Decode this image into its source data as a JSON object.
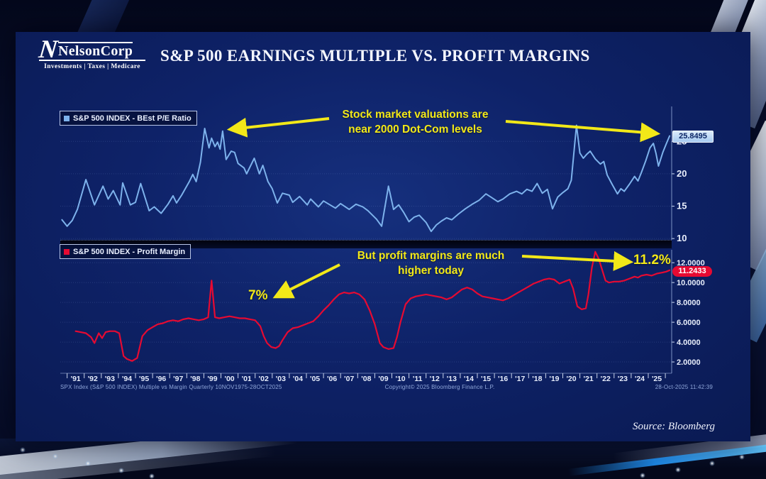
{
  "page": {
    "title": "S&P 500 EARNINGS MULTIPLE VS. PROFIT MARGINS"
  },
  "logo": {
    "name": "NelsonCorp",
    "n_mark": "N",
    "tagline": "Investments | Taxes | Medicare"
  },
  "annotations": {
    "top": {
      "line1": "Stock market valuations are",
      "line2": "near 2000 Dot-Com levels"
    },
    "bottom": {
      "line1": "But profit margins are much",
      "line2": "higher today"
    },
    "label_7pct": "7%",
    "label_11pct": "11.2%"
  },
  "footer": {
    "left": "SPX Index (S&P 500 INDEX) Multiple vs Margin Quarterly 10NOV1975-28OCT2025",
    "center": "Copyright© 2025 Bloomberg Finance L.P.",
    "right": "28-Oct-2025 11:42:39"
  },
  "source": "Source: Bloomberg",
  "colors": {
    "panel": "#0e2268",
    "pe_line": "#7db2ec",
    "margin_line": "#e60a32",
    "annotation_yellow": "#f2e818",
    "axis": "#8fa6d4",
    "grid": "rgba(130,160,220,0.22)",
    "tag_top_bg": "#a5c9f0",
    "tag_bot_bg": "#e60a32"
  },
  "xaxis": {
    "labels": [
      "'91",
      "'92",
      "'93",
      "'94",
      "'95",
      "'96",
      "'97",
      "'98",
      "'99",
      "'00",
      "'01",
      "'02",
      "'03",
      "'04",
      "'05",
      "'06",
      "'07",
      "'08",
      "'09",
      "'10",
      "'11",
      "'12",
      "'13",
      "'14",
      "'15",
      "'16",
      "'17",
      "'18",
      "'19",
      "'20",
      "'21",
      "'22",
      "'23",
      "'24",
      "'25"
    ],
    "start_year": 1991
  },
  "chart_data": [
    {
      "type": "line",
      "title": "S&P 500 INDEX - BEst P/E Ratio",
      "legend": "S&P 500 INDEX - BEst P/E Ratio",
      "color": "#7db2ec",
      "last_value": "25.8495",
      "ylim": [
        9.8,
        30.4
      ],
      "yticks": [
        10,
        15,
        20,
        25
      ],
      "ytick_labels": [
        "10",
        "15",
        "20",
        "25"
      ],
      "xlim": [
        1990.1,
        2025.87
      ],
      "grid": true,
      "legend_position": "top-left",
      "points": [
        [
          1990.2,
          12.9
        ],
        [
          1990.5,
          11.9
        ],
        [
          1990.8,
          12.8
        ],
        [
          1991.1,
          14.5
        ],
        [
          1991.6,
          19.1
        ],
        [
          1992.1,
          15.2
        ],
        [
          1992.6,
          18.1
        ],
        [
          1992.9,
          16.1
        ],
        [
          1993.2,
          17.4
        ],
        [
          1993.6,
          15.2
        ],
        [
          1993.75,
          18.6
        ],
        [
          1994.2,
          15.2
        ],
        [
          1994.5,
          15.6
        ],
        [
          1994.8,
          18.5
        ],
        [
          1995.3,
          14.3
        ],
        [
          1995.6,
          14.9
        ],
        [
          1996.0,
          13.9
        ],
        [
          1996.4,
          15.3
        ],
        [
          1996.7,
          16.6
        ],
        [
          1996.9,
          15.5
        ],
        [
          1997.2,
          16.7
        ],
        [
          1997.65,
          18.8
        ],
        [
          1997.85,
          19.9
        ],
        [
          1998.05,
          18.8
        ],
        [
          1998.3,
          21.8
        ],
        [
          1998.55,
          27.0
        ],
        [
          1998.8,
          24.0
        ],
        [
          1998.95,
          25.5
        ],
        [
          1999.15,
          24.2
        ],
        [
          1999.3,
          24.9
        ],
        [
          1999.45,
          23.8
        ],
        [
          1999.6,
          26.6
        ],
        [
          1999.8,
          22.2
        ],
        [
          2000.1,
          23.5
        ],
        [
          2000.3,
          23.3
        ],
        [
          2000.5,
          21.6
        ],
        [
          2000.85,
          20.9
        ],
        [
          2001.0,
          20.0
        ],
        [
          2001.45,
          22.4
        ],
        [
          2001.75,
          20.0
        ],
        [
          2001.95,
          21.3
        ],
        [
          2002.25,
          18.8
        ],
        [
          2002.5,
          17.7
        ],
        [
          2002.8,
          15.5
        ],
        [
          2003.1,
          17.0
        ],
        [
          2003.5,
          16.7
        ],
        [
          2003.7,
          15.6
        ],
        [
          2004.1,
          16.5
        ],
        [
          2004.55,
          15.2
        ],
        [
          2004.75,
          16.1
        ],
        [
          2005.2,
          14.9
        ],
        [
          2005.5,
          15.8
        ],
        [
          2006.2,
          14.7
        ],
        [
          2006.5,
          15.4
        ],
        [
          2007.0,
          14.5
        ],
        [
          2007.4,
          15.3
        ],
        [
          2007.8,
          14.9
        ],
        [
          2008.1,
          14.3
        ],
        [
          2008.6,
          13.0
        ],
        [
          2008.9,
          11.9
        ],
        [
          2009.3,
          18.1
        ],
        [
          2009.6,
          14.5
        ],
        [
          2009.9,
          15.2
        ],
        [
          2010.2,
          14.0
        ],
        [
          2010.5,
          12.6
        ],
        [
          2010.8,
          13.3
        ],
        [
          2011.1,
          13.6
        ],
        [
          2011.5,
          12.5
        ],
        [
          2011.8,
          11.1
        ],
        [
          2012.1,
          12.1
        ],
        [
          2012.4,
          12.7
        ],
        [
          2012.7,
          13.2
        ],
        [
          2013.0,
          12.9
        ],
        [
          2013.4,
          13.8
        ],
        [
          2013.8,
          14.6
        ],
        [
          2014.2,
          15.3
        ],
        [
          2014.6,
          15.9
        ],
        [
          2015.0,
          16.9
        ],
        [
          2015.3,
          16.4
        ],
        [
          2015.7,
          15.7
        ],
        [
          2016.0,
          16.1
        ],
        [
          2016.4,
          16.9
        ],
        [
          2016.8,
          17.3
        ],
        [
          2017.1,
          16.9
        ],
        [
          2017.4,
          17.6
        ],
        [
          2017.7,
          17.3
        ],
        [
          2018.0,
          18.5
        ],
        [
          2018.3,
          17.0
        ],
        [
          2018.6,
          17.6
        ],
        [
          2018.9,
          14.6
        ],
        [
          2019.2,
          16.4
        ],
        [
          2019.5,
          17.1
        ],
        [
          2019.8,
          17.7
        ],
        [
          2020.0,
          19.0
        ],
        [
          2020.3,
          27.5
        ],
        [
          2020.5,
          23.2
        ],
        [
          2020.7,
          22.4
        ],
        [
          2020.9,
          23.0
        ],
        [
          2021.1,
          23.5
        ],
        [
          2021.4,
          22.3
        ],
        [
          2021.7,
          21.5
        ],
        [
          2021.9,
          21.9
        ],
        [
          2022.1,
          19.8
        ],
        [
          2022.4,
          18.3
        ],
        [
          2022.7,
          16.9
        ],
        [
          2022.9,
          17.7
        ],
        [
          2023.1,
          17.3
        ],
        [
          2023.4,
          18.4
        ],
        [
          2023.7,
          19.6
        ],
        [
          2023.9,
          18.9
        ],
        [
          2024.1,
          20.2
        ],
        [
          2024.35,
          22.0
        ],
        [
          2024.6,
          24.0
        ],
        [
          2024.8,
          24.7
        ],
        [
          2024.95,
          23.2
        ],
        [
          2025.1,
          21.2
        ],
        [
          2025.35,
          23.3
        ],
        [
          2025.55,
          24.6
        ],
        [
          2025.75,
          25.8495
        ]
      ]
    },
    {
      "type": "line",
      "title": "S&P 500 INDEX - Profit Margin",
      "legend": "S&P 500 INDEX - Profit Margin",
      "color": "#e60a32",
      "last_value": "11.2433",
      "ylim": [
        0.86,
        13.3
      ],
      "yticks": [
        2,
        4,
        6,
        8,
        10,
        12
      ],
      "ytick_labels": [
        "2.0000",
        "4.0000",
        "6.0000",
        "8.0000",
        "10.0000",
        "12.0000"
      ],
      "xlim": [
        1990.1,
        2025.87
      ],
      "grid": true,
      "legend_position": "top-left",
      "points": [
        [
          1991.0,
          5.1
        ],
        [
          1991.3,
          5.0
        ],
        [
          1991.6,
          4.9
        ],
        [
          1991.9,
          4.5
        ],
        [
          1992.1,
          3.9
        ],
        [
          1992.35,
          4.9
        ],
        [
          1992.55,
          4.4
        ],
        [
          1992.75,
          5.0
        ],
        [
          1993.0,
          5.1
        ],
        [
          1993.3,
          5.1
        ],
        [
          1993.55,
          4.9
        ],
        [
          1993.8,
          2.6
        ],
        [
          1994.0,
          2.3
        ],
        [
          1994.3,
          2.1
        ],
        [
          1994.6,
          2.4
        ],
        [
          1994.9,
          4.6
        ],
        [
          1995.2,
          5.2
        ],
        [
          1995.5,
          5.5
        ],
        [
          1995.8,
          5.8
        ],
        [
          1996.1,
          5.9
        ],
        [
          1996.4,
          6.1
        ],
        [
          1996.7,
          6.2
        ],
        [
          1997.0,
          6.1
        ],
        [
          1997.3,
          6.3
        ],
        [
          1997.6,
          6.4
        ],
        [
          1997.9,
          6.3
        ],
        [
          1998.2,
          6.2
        ],
        [
          1998.5,
          6.3
        ],
        [
          1998.75,
          6.5
        ],
        [
          1998.95,
          10.2
        ],
        [
          1999.15,
          6.5
        ],
        [
          1999.4,
          6.4
        ],
        [
          1999.7,
          6.5
        ],
        [
          2000.0,
          6.6
        ],
        [
          2000.3,
          6.5
        ],
        [
          2000.6,
          6.4
        ],
        [
          2000.9,
          6.4
        ],
        [
          2001.2,
          6.3
        ],
        [
          2001.5,
          6.2
        ],
        [
          2001.8,
          5.6
        ],
        [
          2002.0,
          4.6
        ],
        [
          2002.2,
          3.9
        ],
        [
          2002.45,
          3.5
        ],
        [
          2002.7,
          3.4
        ],
        [
          2002.9,
          3.6
        ],
        [
          2003.1,
          4.2
        ],
        [
          2003.4,
          5.0
        ],
        [
          2003.7,
          5.4
        ],
        [
          2004.0,
          5.5
        ],
        [
          2004.3,
          5.7
        ],
        [
          2004.6,
          5.9
        ],
        [
          2004.9,
          6.1
        ],
        [
          2005.2,
          6.6
        ],
        [
          2005.5,
          7.2
        ],
        [
          2005.8,
          7.7
        ],
        [
          2006.1,
          8.3
        ],
        [
          2006.4,
          8.8
        ],
        [
          2006.7,
          9.0
        ],
        [
          2007.0,
          8.9
        ],
        [
          2007.3,
          9.0
        ],
        [
          2007.6,
          8.8
        ],
        [
          2007.9,
          8.3
        ],
        [
          2008.2,
          7.2
        ],
        [
          2008.5,
          5.8
        ],
        [
          2008.8,
          3.9
        ],
        [
          2009.0,
          3.5
        ],
        [
          2009.3,
          3.3
        ],
        [
          2009.6,
          3.4
        ],
        [
          2009.8,
          4.5
        ],
        [
          2010.0,
          6.0
        ],
        [
          2010.3,
          7.8
        ],
        [
          2010.6,
          8.4
        ],
        [
          2010.9,
          8.6
        ],
        [
          2011.2,
          8.7
        ],
        [
          2011.5,
          8.8
        ],
        [
          2011.8,
          8.7
        ],
        [
          2012.1,
          8.6
        ],
        [
          2012.4,
          8.5
        ],
        [
          2012.7,
          8.3
        ],
        [
          2013.0,
          8.5
        ],
        [
          2013.3,
          8.9
        ],
        [
          2013.6,
          9.3
        ],
        [
          2013.9,
          9.5
        ],
        [
          2014.2,
          9.3
        ],
        [
          2014.5,
          8.9
        ],
        [
          2014.8,
          8.6
        ],
        [
          2015.1,
          8.5
        ],
        [
          2015.4,
          8.4
        ],
        [
          2015.7,
          8.3
        ],
        [
          2016.0,
          8.2
        ],
        [
          2016.3,
          8.4
        ],
        [
          2016.6,
          8.7
        ],
        [
          2016.9,
          9.0
        ],
        [
          2017.2,
          9.3
        ],
        [
          2017.5,
          9.6
        ],
        [
          2017.8,
          9.9
        ],
        [
          2018.1,
          10.1
        ],
        [
          2018.4,
          10.3
        ],
        [
          2018.7,
          10.4
        ],
        [
          2019.0,
          10.3
        ],
        [
          2019.3,
          9.9
        ],
        [
          2019.6,
          10.1
        ],
        [
          2019.9,
          10.3
        ],
        [
          2020.1,
          9.4
        ],
        [
          2020.35,
          7.6
        ],
        [
          2020.6,
          7.3
        ],
        [
          2020.85,
          7.4
        ],
        [
          2021.0,
          8.8
        ],
        [
          2021.2,
          11.5
        ],
        [
          2021.4,
          13.1
        ],
        [
          2021.6,
          12.4
        ],
        [
          2021.8,
          11.3
        ],
        [
          2022.0,
          10.2
        ],
        [
          2022.2,
          10.0
        ],
        [
          2022.5,
          10.1
        ],
        [
          2022.8,
          10.1
        ],
        [
          2023.1,
          10.2
        ],
        [
          2023.4,
          10.4
        ],
        [
          2023.7,
          10.6
        ],
        [
          2023.9,
          10.5
        ],
        [
          2024.1,
          10.7
        ],
        [
          2024.4,
          10.8
        ],
        [
          2024.7,
          10.7
        ],
        [
          2025.0,
          10.9
        ],
        [
          2025.3,
          11.0
        ],
        [
          2025.55,
          11.1
        ],
        [
          2025.75,
          11.2433
        ]
      ]
    }
  ]
}
